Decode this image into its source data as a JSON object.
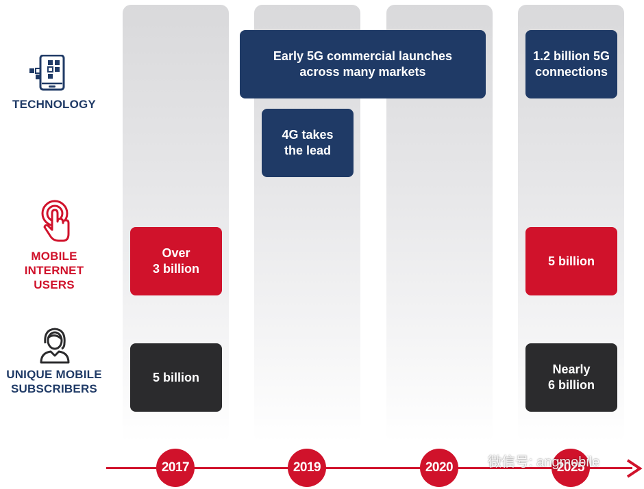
{
  "rows": {
    "technology": {
      "label": "TECHNOLOGY",
      "icon": "phone-network-icon",
      "color": "#1f3a66"
    },
    "internet": {
      "label_lines": [
        "MOBILE INTERNET",
        "USERS"
      ],
      "icon": "touch-hand-icon",
      "color": "#d0122b"
    },
    "subscribers": {
      "label_lines": [
        "UNIQUE MOBILE",
        "SUBSCRIBERS"
      ],
      "icon": "person-icon",
      "color": "#1f3a66"
    }
  },
  "boxes": {
    "early_5g": {
      "lines": [
        "Early 5G commercial launches",
        "across many markets"
      ]
    },
    "g4_lead": {
      "lines": [
        "4G takes",
        "the lead"
      ]
    },
    "connections_5g": {
      "lines": [
        "1.2 billion 5G",
        "connections"
      ]
    },
    "internet_2017": {
      "lines": [
        "Over",
        "3 billion"
      ]
    },
    "internet_2025": {
      "lines": [
        "5 billion"
      ]
    },
    "subs_2017": {
      "lines": [
        "5 billion"
      ]
    },
    "subs_2025": {
      "lines": [
        "Nearly",
        "6 billion"
      ]
    }
  },
  "timeline": {
    "years": [
      "2017",
      "2019",
      "2020",
      "2025"
    ],
    "color": "#d0122b"
  },
  "colors": {
    "navy": "#1f3a66",
    "red": "#d0122b",
    "dark": "#2b2b2d"
  },
  "watermark": {
    "text": "微信号: angmobile",
    "icon": "wechat-icon"
  }
}
